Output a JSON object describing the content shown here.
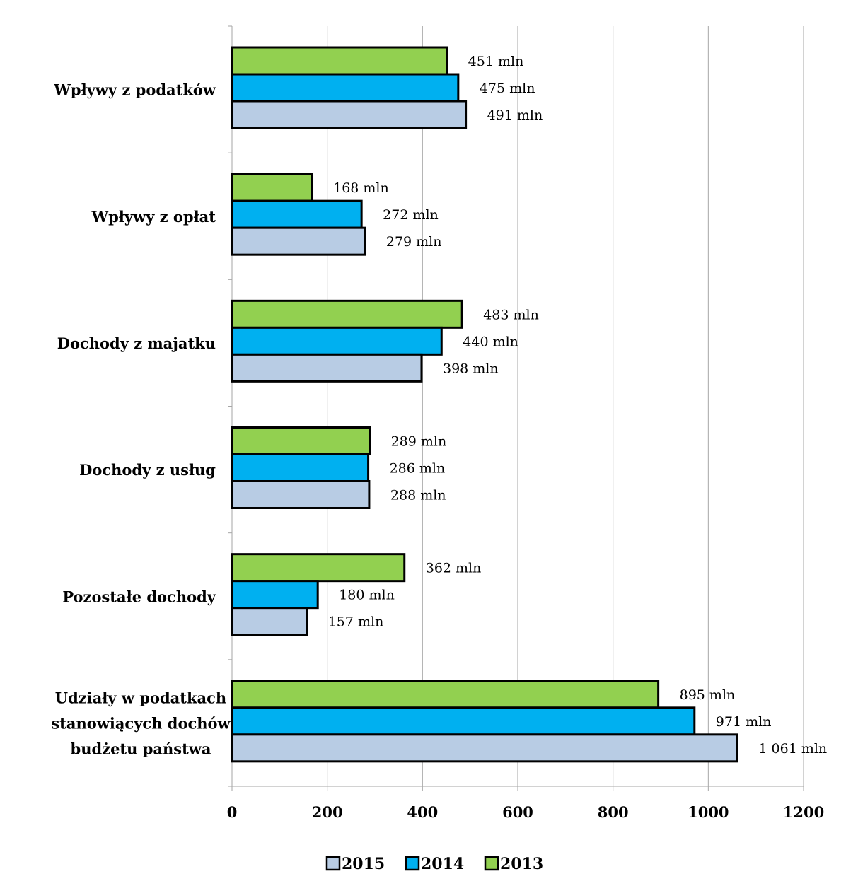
{
  "chart_data": {
    "type": "bar",
    "orientation": "horizontal",
    "categories": [
      "Wpływy z podatków",
      "Wpływy z opłat",
      "Dochody z majatku",
      "Dochody z usług",
      "Pozostałe dochody",
      "Udziały w podatkach stanowiących dochów budżetu państwa"
    ],
    "category_lines": [
      [
        "Wpływy z podatków"
      ],
      [
        "Wpływy z opłat"
      ],
      [
        "Dochody z majatku"
      ],
      [
        "Dochody z usług"
      ],
      [
        "Pozostałe dochody"
      ],
      [
        "Udziały w podatkach",
        "stanowiących dochów",
        "budżetu państwa"
      ]
    ],
    "series": [
      {
        "name": "2013",
        "color": "#92d050",
        "values": [
          451,
          168,
          483,
          289,
          362,
          895
        ],
        "labels": [
          "451 mln",
          "168 mln",
          "483 mln",
          "289 mln",
          "362 mln",
          "895 mln"
        ]
      },
      {
        "name": "2014",
        "color": "#00b0f0",
        "values": [
          475,
          272,
          440,
          286,
          180,
          971
        ],
        "labels": [
          "475 mln",
          "272 mln",
          "440 mln",
          "286 mln",
          "180 mln",
          "971 mln"
        ]
      },
      {
        "name": "2015",
        "color": "#b8cce4",
        "values": [
          491,
          279,
          398,
          288,
          157,
          1061
        ],
        "labels": [
          "491 mln",
          "279 mln",
          "398 mln",
          "288 mln",
          "157 mln",
          "1 061 mln"
        ]
      }
    ],
    "legend_order": [
      "2015",
      "2014",
      "2013"
    ],
    "xlim": [
      0,
      1200
    ],
    "xticks": [
      0,
      200,
      400,
      600,
      800,
      1000,
      1200
    ],
    "grid": true,
    "legend_position": "bottom",
    "title": "",
    "xlabel": "",
    "ylabel": ""
  }
}
